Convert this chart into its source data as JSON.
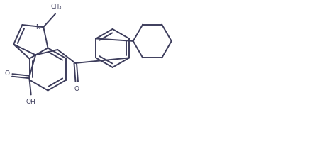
{
  "line_color": "#3d3d5c",
  "bg_color": "#ffffff",
  "line_width": 1.4,
  "figsize": [
    4.54,
    2.0
  ],
  "dpi": 100,
  "xlim": [
    0,
    9.08
  ],
  "ylim": [
    0,
    4.0
  ]
}
